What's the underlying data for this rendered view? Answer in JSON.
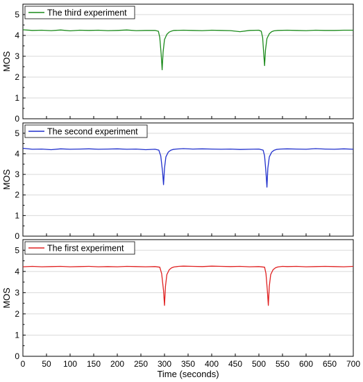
{
  "chart_data": {
    "type": "line",
    "xlabel": "Time (seconds)",
    "xlim": [
      0,
      700
    ],
    "x_ticks": [
      0,
      50,
      100,
      150,
      200,
      250,
      300,
      350,
      400,
      450,
      500,
      550,
      600,
      650,
      700
    ],
    "grid": true,
    "panels": [
      {
        "ylabel": "MOS",
        "ylim": [
          0,
          5.5
        ],
        "y_ticks": [
          0,
          1,
          2,
          3,
          4,
          5
        ],
        "legend_position": "top-left",
        "color": "#1a8a1a",
        "series": [
          {
            "name": "The third experiment",
            "x": [
              0,
              20,
              40,
              60,
              80,
              100,
              120,
              140,
              160,
              180,
              200,
              220,
              240,
              260,
              280,
              287,
              290,
              293,
              295,
              297,
              300,
              305,
              310,
              315,
              320,
              340,
              360,
              380,
              400,
              420,
              440,
              460,
              480,
              500,
              505,
              508,
              510,
              512,
              514,
              517,
              522,
              527,
              532,
              540,
              560,
              580,
              600,
              620,
              640,
              660,
              680,
              700
            ],
            "y": [
              4.27,
              4.24,
              4.25,
              4.23,
              4.26,
              4.22,
              4.25,
              4.24,
              4.25,
              4.23,
              4.24,
              4.26,
              4.23,
              4.24,
              4.24,
              4.2,
              3.9,
              3.1,
              2.35,
              3.2,
              3.8,
              4.05,
              4.16,
              4.21,
              4.24,
              4.25,
              4.24,
              4.23,
              4.25,
              4.24,
              4.23,
              4.18,
              4.24,
              4.25,
              4.2,
              3.9,
              3.2,
              2.55,
              3.3,
              3.85,
              4.08,
              4.18,
              4.22,
              4.24,
              4.25,
              4.24,
              4.23,
              4.25,
              4.24,
              4.24,
              4.25,
              4.25
            ]
          }
        ]
      },
      {
        "ylabel": "MOS",
        "ylim": [
          0,
          5.5
        ],
        "y_ticks": [
          0,
          1,
          2,
          3,
          4,
          5
        ],
        "legend_position": "top-left",
        "color": "#1f2fcc",
        "series": [
          {
            "name": "The second experiment",
            "x": [
              0,
              20,
              40,
              60,
              80,
              100,
              120,
              140,
              160,
              180,
              200,
              220,
              240,
              260,
              280,
              288,
              292,
              296,
              298,
              300,
              303,
              308,
              313,
              318,
              325,
              340,
              360,
              380,
              400,
              420,
              440,
              460,
              480,
              500,
              509,
              512,
              515,
              517,
              519,
              522,
              527,
              532,
              537,
              545,
              560,
              580,
              600,
              620,
              640,
              660,
              680,
              700
            ],
            "y": [
              4.27,
              4.22,
              4.23,
              4.2,
              4.24,
              4.22,
              4.23,
              4.24,
              4.22,
              4.23,
              4.24,
              4.22,
              4.23,
              4.2,
              4.22,
              4.18,
              3.9,
              3.1,
              2.5,
              3.3,
              3.85,
              4.08,
              4.17,
              4.21,
              4.23,
              4.25,
              4.23,
              4.24,
              4.23,
              4.22,
              4.23,
              4.21,
              4.22,
              4.23,
              4.18,
              3.9,
              3.1,
              2.38,
              3.3,
              3.85,
              4.08,
              4.17,
              4.21,
              4.23,
              4.24,
              4.23,
              4.22,
              4.25,
              4.23,
              4.22,
              4.24,
              4.22
            ]
          }
        ]
      },
      {
        "ylabel": "MOS",
        "ylim": [
          0,
          5.5
        ],
        "y_ticks": [
          0,
          1,
          2,
          3,
          4,
          5
        ],
        "legend_position": "top-left",
        "color": "#e02020",
        "series": [
          {
            "name": "The first experiment",
            "x": [
              0,
              20,
              40,
              60,
              80,
              100,
              120,
              140,
              160,
              180,
              200,
              220,
              240,
              260,
              280,
              290,
              294,
              298,
              300,
              302,
              305,
              310,
              315,
              320,
              330,
              340,
              360,
              380,
              400,
              420,
              440,
              460,
              480,
              500,
              512,
              515,
              518,
              520,
              522,
              525,
              530,
              535,
              540,
              550,
              560,
              580,
              600,
              620,
              640,
              660,
              680,
              700
            ],
            "y": [
              4.22,
              4.24,
              4.22,
              4.23,
              4.24,
              4.22,
              4.23,
              4.24,
              4.22,
              4.23,
              4.22,
              4.24,
              4.23,
              4.22,
              4.23,
              4.2,
              3.9,
              3.1,
              2.4,
              3.3,
              3.85,
              4.08,
              4.17,
              4.21,
              4.24,
              4.25,
              4.24,
              4.23,
              4.25,
              4.24,
              4.23,
              4.24,
              4.22,
              4.23,
              4.2,
              3.9,
              3.1,
              2.4,
              3.3,
              3.85,
              4.08,
              4.17,
              4.21,
              4.24,
              4.23,
              4.24,
              4.22,
              4.23,
              4.24,
              4.23,
              4.22,
              4.24
            ]
          }
        ]
      }
    ]
  }
}
